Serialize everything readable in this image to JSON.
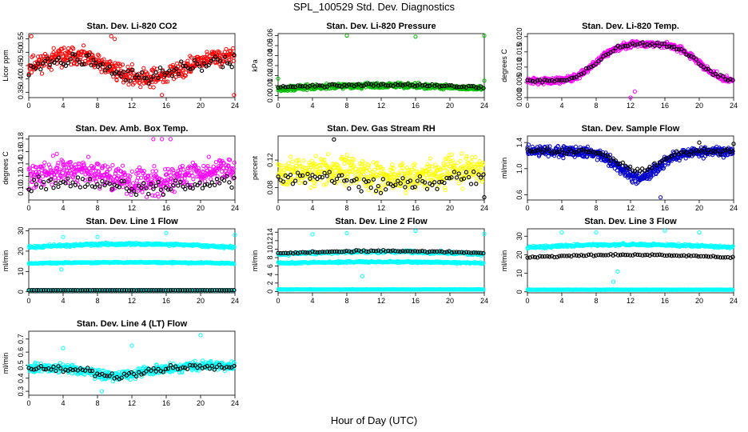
{
  "figure": {
    "title": "SPL_100529  Std. Dev. Diagnostics",
    "xlabel": "Hour of Day (UTC)"
  },
  "chart_data": [
    {
      "type": "scatter",
      "title": "Stan. Dev. Li-820 CO2",
      "ylabel": "Licor ppm",
      "xlim": [
        0,
        24
      ],
      "xticks": [
        0,
        4,
        8,
        12,
        16,
        20,
        24
      ],
      "ylim": [
        0.33,
        0.57
      ],
      "yticks": [
        "0.35",
        "0.40",
        "0.45",
        "0.50",
        "0.55"
      ],
      "grid": false,
      "series": [
        {
          "color": "#ff0000",
          "pattern": "noise",
          "base": 0.445,
          "amp": 0.04,
          "noise": 0.1,
          "n": 470,
          "seed": 11,
          "outliers": [
            [
              0.3,
              0.56
            ],
            [
              9.6,
              0.56
            ],
            [
              10,
              0.55
            ],
            [
              15.5,
              0.34
            ],
            [
              23.9,
              0.34
            ]
          ]
        },
        {
          "color": "#000000",
          "pattern": "noise",
          "base": 0.44,
          "amp": 0.03,
          "noise": 0.08,
          "n": 90,
          "seed": 12
        }
      ]
    },
    {
      "type": "scatter",
      "title": "Stan. Dev. Li-820 Pressure",
      "ylabel": "kPa",
      "xlim": [
        0,
        24
      ],
      "xticks": [
        0,
        4,
        8,
        12,
        16,
        20,
        24
      ],
      "ylim": [
        -0.002,
        0.062
      ],
      "yticks": [
        "0.00",
        "0.01",
        "0.02",
        "0.03",
        "0.04",
        "0.05",
        "0.06"
      ],
      "grid": false,
      "series": [
        {
          "color": "#00bb00",
          "pattern": "band",
          "base": 0.007,
          "amp": 0.003,
          "noise": 0.007,
          "n": 620,
          "seed": 21,
          "outliers": [
            [
              0,
              0.017
            ],
            [
              8,
              0.06
            ],
            [
              16,
              0.059
            ],
            [
              24,
              0.06
            ],
            [
              24,
              0.015
            ]
          ]
        },
        {
          "color": "#000000",
          "pattern": "band",
          "base": 0.008,
          "amp": 0.003,
          "noise": 0.004,
          "n": 85,
          "seed": 22
        }
      ]
    },
    {
      "type": "scatter",
      "title": "Stan. Dev. Li-820 Temp.",
      "ylabel": "degrees C",
      "xlim": [
        0,
        24
      ],
      "xticks": [
        0,
        4,
        8,
        12,
        16,
        20,
        24
      ],
      "ylim": [
        0.0,
        0.021
      ],
      "yticks": [
        "0.000",
        "0.005",
        "0.010",
        "0.015",
        "0.020"
      ],
      "grid": false,
      "series": [
        {
          "color": "#ff00ff",
          "pattern": "wave",
          "base": 0.0115,
          "amp": 0.0075,
          "noise": 0.003,
          "n": 560,
          "seed": 31,
          "outliers": [
            [
              12,
              0.0
            ],
            [
              12.5,
              0.002
            ]
          ]
        },
        {
          "color": "#000000",
          "pattern": "wave",
          "base": 0.0115,
          "amp": 0.0075,
          "noise": 0.002,
          "n": 85,
          "seed": 32
        }
      ]
    },
    {
      "type": "scatter",
      "title": "Stan. Dev. Amb. Box Temp.",
      "ylabel": "degrees C",
      "xlim": [
        0,
        24
      ],
      "xticks": [
        0,
        4,
        8,
        12,
        16,
        20,
        24
      ],
      "ylim": [
        0.082,
        0.185
      ],
      "yticks": [
        "0.10",
        "0.12",
        "0.14",
        "0.16",
        "0.18"
      ],
      "grid": false,
      "series": [
        {
          "color": "#ff00ff",
          "pattern": "noise",
          "base": 0.12,
          "amp": 0.01,
          "noise": 0.06,
          "n": 470,
          "seed": 41,
          "outliers": [
            [
              14.5,
              0.18
            ],
            [
              15.5,
              0.18
            ],
            [
              16.5,
              0.18
            ]
          ]
        },
        {
          "color": "#000000",
          "pattern": "noise",
          "base": 0.105,
          "amp": 0.005,
          "noise": 0.03,
          "n": 85,
          "seed": 42
        }
      ]
    },
    {
      "type": "scatter",
      "title": "Stan. Dev. Gas Stream RH",
      "ylabel": "percent",
      "xlim": [
        0,
        24
      ],
      "xticks": [
        0,
        4,
        8,
        12,
        16,
        20,
        24
      ],
      "ylim": [
        0.062,
        0.155
      ],
      "yticks": [
        "0.08",
        "0.12"
      ],
      "grid": false,
      "series": [
        {
          "color": "#ffff00",
          "pattern": "noise",
          "base": 0.1,
          "amp": 0.006,
          "noise": 0.06,
          "n": 520,
          "seed": 51
        },
        {
          "color": "#000000",
          "pattern": "noise",
          "base": 0.09,
          "amp": 0.005,
          "noise": 0.035,
          "n": 85,
          "seed": 52,
          "outliers": [
            [
              6.5,
              0.15
            ],
            [
              24,
              0.066
            ]
          ]
        }
      ]
    },
    {
      "type": "scatter",
      "title": "Stan. Dev. Sample Flow",
      "ylabel": "ml/min",
      "xlim": [
        0,
        24
      ],
      "xticks": [
        0,
        4,
        8,
        12,
        16,
        20,
        24
      ],
      "ylim": [
        0.52,
        1.5
      ],
      "yticks": [
        "0.6",
        "1.0",
        "1.4"
      ],
      "grid": false,
      "series": [
        {
          "color": "#0000cc",
          "pattern": "valley",
          "base": 1.06,
          "amp": 0.2,
          "noise": 0.24,
          "n": 580,
          "seed": 61,
          "outliers": [
            [
              15.5,
              0.56
            ]
          ]
        },
        {
          "color": "#000000",
          "pattern": "valley",
          "base": 1.12,
          "amp": 0.15,
          "noise": 0.12,
          "n": 85,
          "seed": 62,
          "outliers": [
            [
              20,
              1.4
            ],
            [
              24,
              1.38
            ]
          ]
        }
      ]
    },
    {
      "type": "scatter",
      "title": "Stan. Dev. Line 1 Flow",
      "ylabel": "ml/min",
      "xlim": [
        0,
        24
      ],
      "xticks": [
        0,
        4,
        8,
        12,
        16,
        20,
        24
      ],
      "ylim": [
        -0.5,
        31
      ],
      "yticks": [
        "0",
        "10",
        "20",
        "30"
      ],
      "grid": false,
      "series": [
        {
          "color": "#00ffff",
          "pattern": "band",
          "base": 22,
          "amp": 1.5,
          "noise": 1.8,
          "n": 330,
          "seed": 71,
          "outliers": [
            [
              4,
              27
            ],
            [
              8,
              27
            ],
            [
              16,
              29
            ],
            [
              24,
              28
            ],
            [
              3.8,
              11
            ]
          ]
        },
        {
          "color": "#00ffff",
          "pattern": "band",
          "base": 14,
          "amp": 0.5,
          "noise": 1.0,
          "n": 330,
          "seed": 72
        },
        {
          "color": "#00ffff",
          "pattern": "band",
          "base": 0.8,
          "amp": 0,
          "noise": 0.2,
          "n": 260,
          "seed": 73
        },
        {
          "color": "#000000",
          "pattern": "band",
          "base": 0.8,
          "amp": 0,
          "noise": 0.1,
          "n": 85,
          "seed": 74
        }
      ]
    },
    {
      "type": "scatter",
      "title": "Stan. Dev. Line 2 Flow",
      "ylabel": "ml/min",
      "xlim": [
        0,
        24
      ],
      "xticks": [
        0,
        4,
        8,
        12,
        16,
        20,
        24
      ],
      "ylim": [
        -0.3,
        14.8
      ],
      "yticks": [
        "0",
        "2",
        "4",
        "6",
        "8",
        "10",
        "12",
        "14"
      ],
      "grid": false,
      "series": [
        {
          "color": "#00ffff",
          "pattern": "band",
          "base": 8.8,
          "amp": 0.6,
          "noise": 1.0,
          "n": 300,
          "seed": 81,
          "outliers": [
            [
              4,
              13.5
            ],
            [
              8,
              13.8
            ],
            [
              16,
              14.3
            ],
            [
              24,
              13.6
            ],
            [
              9.8,
              3.6
            ]
          ]
        },
        {
          "color": "#00ffff",
          "pattern": "band",
          "base": 6.7,
          "amp": 0.3,
          "noise": 0.6,
          "n": 300,
          "seed": 82
        },
        {
          "color": "#00ffff",
          "pattern": "band",
          "base": 0.5,
          "amp": 0,
          "noise": 0.15,
          "n": 260,
          "seed": 83
        },
        {
          "color": "#000000",
          "pattern": "band",
          "base": 9.0,
          "amp": 0.6,
          "noise": 0.6,
          "n": 85,
          "seed": 84
        }
      ]
    },
    {
      "type": "scatter",
      "title": "Stan. Dev. Line 3 Flow",
      "ylabel": "ml/min",
      "xlim": [
        0,
        24
      ],
      "xticks": [
        0,
        4,
        8,
        12,
        16,
        20,
        24
      ],
      "ylim": [
        -0.5,
        34
      ],
      "yticks": [
        "0",
        "10",
        "20",
        "30"
      ],
      "grid": false,
      "series": [
        {
          "color": "#00ffff",
          "pattern": "band",
          "base": 24,
          "amp": 1.5,
          "noise": 2.0,
          "n": 330,
          "seed": 91,
          "outliers": [
            [
              4,
              32
            ],
            [
              8,
              32
            ],
            [
              16,
              33
            ],
            [
              20,
              32
            ],
            [
              10,
              5.5
            ],
            [
              10.5,
              11
            ]
          ]
        },
        {
          "color": "#00ffff",
          "pattern": "band",
          "base": 1.2,
          "amp": 0,
          "noise": 0.3,
          "n": 260,
          "seed": 92
        },
        {
          "color": "#000000",
          "pattern": "band",
          "base": 18.5,
          "amp": 1.5,
          "noise": 1.2,
          "n": 85,
          "seed": 93
        }
      ]
    },
    {
      "type": "scatter",
      "title": "Stan. Dev. Line 4 (LT) Flow",
      "ylabel": "ml/min",
      "xlim": [
        0,
        24
      ],
      "xticks": [
        0,
        4,
        8,
        12,
        16,
        20,
        24
      ],
      "ylim": [
        0.27,
        0.76
      ],
      "yticks": [
        "0.3",
        "0.4",
        "0.5",
        "0.6",
        "0.7"
      ],
      "grid": false,
      "series": [
        {
          "color": "#00ffff",
          "pattern": "dip",
          "base": 0.44,
          "amp": 0.04,
          "noise": 0.1,
          "n": 540,
          "seed": 101,
          "outliers": [
            [
              4,
              0.63
            ],
            [
              12,
              0.65
            ],
            [
              20,
              0.73
            ],
            [
              8.5,
              0.3
            ]
          ]
        },
        {
          "color": "#000000",
          "pattern": "dip",
          "base": 0.44,
          "amp": 0.035,
          "noise": 0.07,
          "n": 85,
          "seed": 102
        }
      ]
    }
  ]
}
